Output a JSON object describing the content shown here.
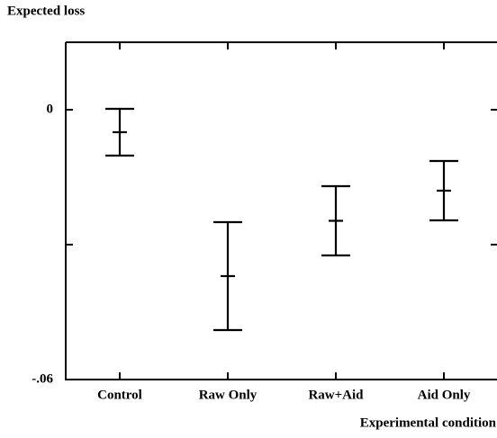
{
  "chart_data": {
    "type": "errorbar",
    "ylabel": "Expected loss",
    "xlabel": "Experimental condition",
    "categories": [
      "Control",
      "Raw Only",
      "Raw+Aid",
      "Aid Only"
    ],
    "values": [
      -0.005,
      -0.037,
      -0.0247,
      -0.018
    ],
    "errors": [
      0.0052,
      0.012,
      0.0077,
      0.0066
    ],
    "color": "#000000",
    "ylim": [
      -0.06,
      0.015
    ],
    "yticks": [
      0,
      {
        "value": -0.03,
        "label": null
      },
      {
        "value": -0.06,
        "label": "-.06"
      }
    ],
    "grid": false
  }
}
